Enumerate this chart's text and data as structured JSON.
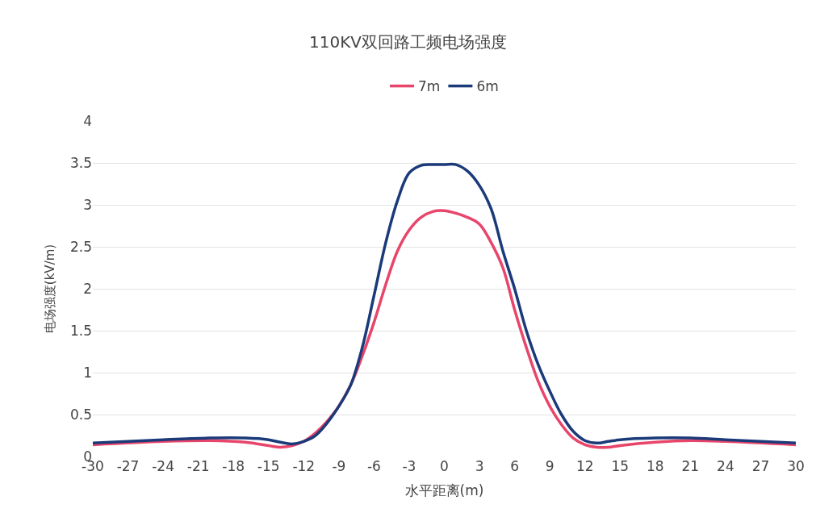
{
  "chart_data": {
    "type": "line",
    "title": "110KV双回路工频电场强度",
    "xlabel": "水平距离(m)",
    "ylabel": "电场强度(kV/m)",
    "xlim": [
      -30,
      30
    ],
    "xticks": [
      -30,
      -27,
      -24,
      -21,
      -18,
      -15,
      -12,
      -9,
      -6,
      -3,
      0,
      3,
      6,
      9,
      12,
      15,
      18,
      21,
      24,
      27,
      30
    ],
    "ylim": [
      0,
      4
    ],
    "yticks": [
      0,
      0.5,
      1,
      1.5,
      2,
      2.5,
      3,
      3.5,
      4
    ],
    "grid": "y",
    "legend": "top",
    "marker": "none",
    "line_style": "solid",
    "x": [
      -30,
      -24,
      -20,
      -17,
      -15,
      -14,
      -13,
      -12,
      -11,
      -10,
      -9,
      -8,
      -7,
      -6,
      -5,
      -4,
      -3,
      -2,
      -1,
      0,
      1,
      2,
      3,
      4,
      5,
      6,
      7,
      8,
      9,
      10,
      11,
      12,
      13,
      14,
      15,
      18,
      21,
      24,
      30
    ],
    "series": [
      {
        "name": "7m",
        "color": "#e8456b",
        "values": [
          0.14,
          0.18,
          0.19,
          0.17,
          0.13,
          0.11,
          0.13,
          0.18,
          0.28,
          0.42,
          0.6,
          0.85,
          1.2,
          1.6,
          2.05,
          2.45,
          2.7,
          2.85,
          2.92,
          2.93,
          2.9,
          2.85,
          2.77,
          2.55,
          2.25,
          1.75,
          1.3,
          0.9,
          0.6,
          0.38,
          0.22,
          0.14,
          0.11,
          0.11,
          0.13,
          0.17,
          0.19,
          0.18,
          0.14
        ]
      },
      {
        "name": "6m",
        "color": "#1b3a7a",
        "values": [
          0.16,
          0.2,
          0.22,
          0.22,
          0.2,
          0.17,
          0.15,
          0.18,
          0.25,
          0.4,
          0.6,
          0.85,
          1.3,
          1.92,
          2.55,
          3.05,
          3.38,
          3.47,
          3.48,
          3.48,
          3.48,
          3.4,
          3.23,
          2.95,
          2.45,
          2.0,
          1.5,
          1.1,
          0.78,
          0.5,
          0.3,
          0.19,
          0.16,
          0.18,
          0.2,
          0.22,
          0.22,
          0.2,
          0.16
        ]
      }
    ]
  }
}
